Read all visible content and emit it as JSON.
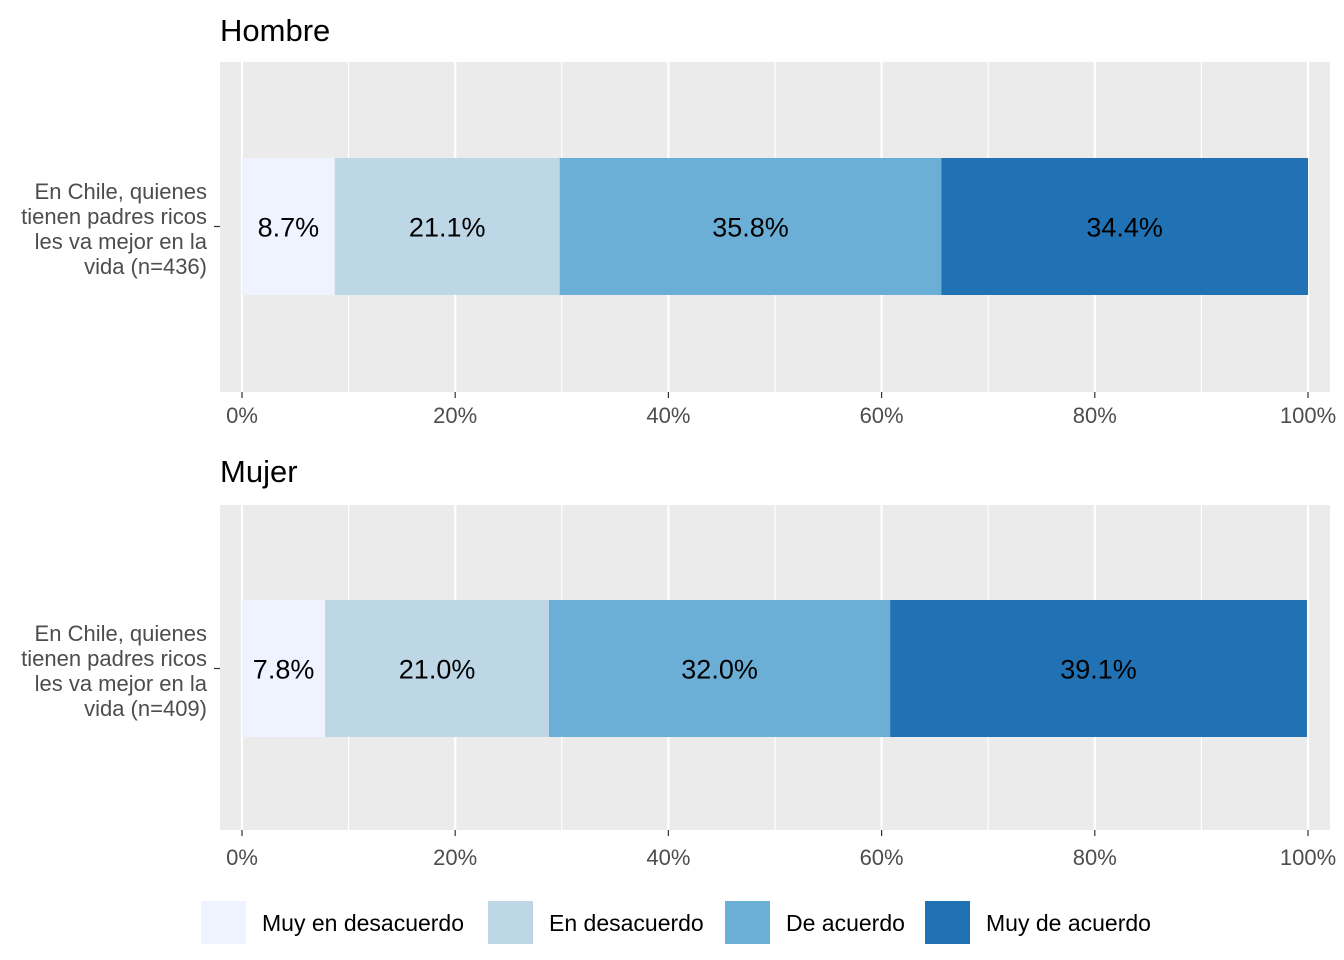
{
  "chart_data": [
    {
      "type": "bar",
      "orientation": "horizontal",
      "stacked": true,
      "title": "Hombre",
      "categories": [
        "En Chile, quienes tienen padres ricos les va mejor en la vida (n=436)"
      ],
      "category_lines": [
        "En Chile, quienes",
        "tienen padres ricos",
        "les va mejor en la",
        "vida (n=436)"
      ],
      "series": [
        {
          "name": "Muy en desacuerdo",
          "values": [
            8.7
          ],
          "label": "8.7%"
        },
        {
          "name": "En desacuerdo",
          "values": [
            21.1
          ],
          "label": "21.1%"
        },
        {
          "name": "De acuerdo",
          "values": [
            35.8
          ],
          "label": "35.8%"
        },
        {
          "name": "Muy de acuerdo",
          "values": [
            34.4
          ],
          "label": "34.4%"
        }
      ],
      "xlim": [
        0,
        100
      ],
      "xticks": [
        "0%",
        "20%",
        "40%",
        "60%",
        "80%",
        "100%"
      ],
      "grid": true
    },
    {
      "type": "bar",
      "orientation": "horizontal",
      "stacked": true,
      "title": "Mujer",
      "categories": [
        "En Chile, quienes tienen padres ricos les va mejor en la vida (n=409)"
      ],
      "category_lines": [
        "En Chile, quienes",
        "tienen padres ricos",
        "les va mejor en la",
        "vida (n=409)"
      ],
      "series": [
        {
          "name": "Muy en desacuerdo",
          "values": [
            7.8
          ],
          "label": "7.8%"
        },
        {
          "name": "En desacuerdo",
          "values": [
            21.0
          ],
          "label": "21.0%"
        },
        {
          "name": "De acuerdo",
          "values": [
            32.0
          ],
          "label": "32.0%"
        },
        {
          "name": "Muy de acuerdo",
          "values": [
            39.1
          ],
          "label": "39.1%"
        }
      ],
      "xlim": [
        0,
        100
      ],
      "xticks": [
        "0%",
        "20%",
        "40%",
        "60%",
        "80%",
        "100%"
      ],
      "grid": true
    }
  ],
  "legend": {
    "placement": "bottom",
    "items": [
      "Muy en desacuerdo",
      "En desacuerdo",
      "De acuerdo",
      "Muy de acuerdo"
    ]
  },
  "colors": {
    "series": [
      "#eff3ff",
      "#bdd7e7",
      "#6baed6",
      "#2171b5"
    ],
    "panel_bg": "#ebebeb",
    "grid": "#ffffff",
    "tick": "#333333"
  }
}
